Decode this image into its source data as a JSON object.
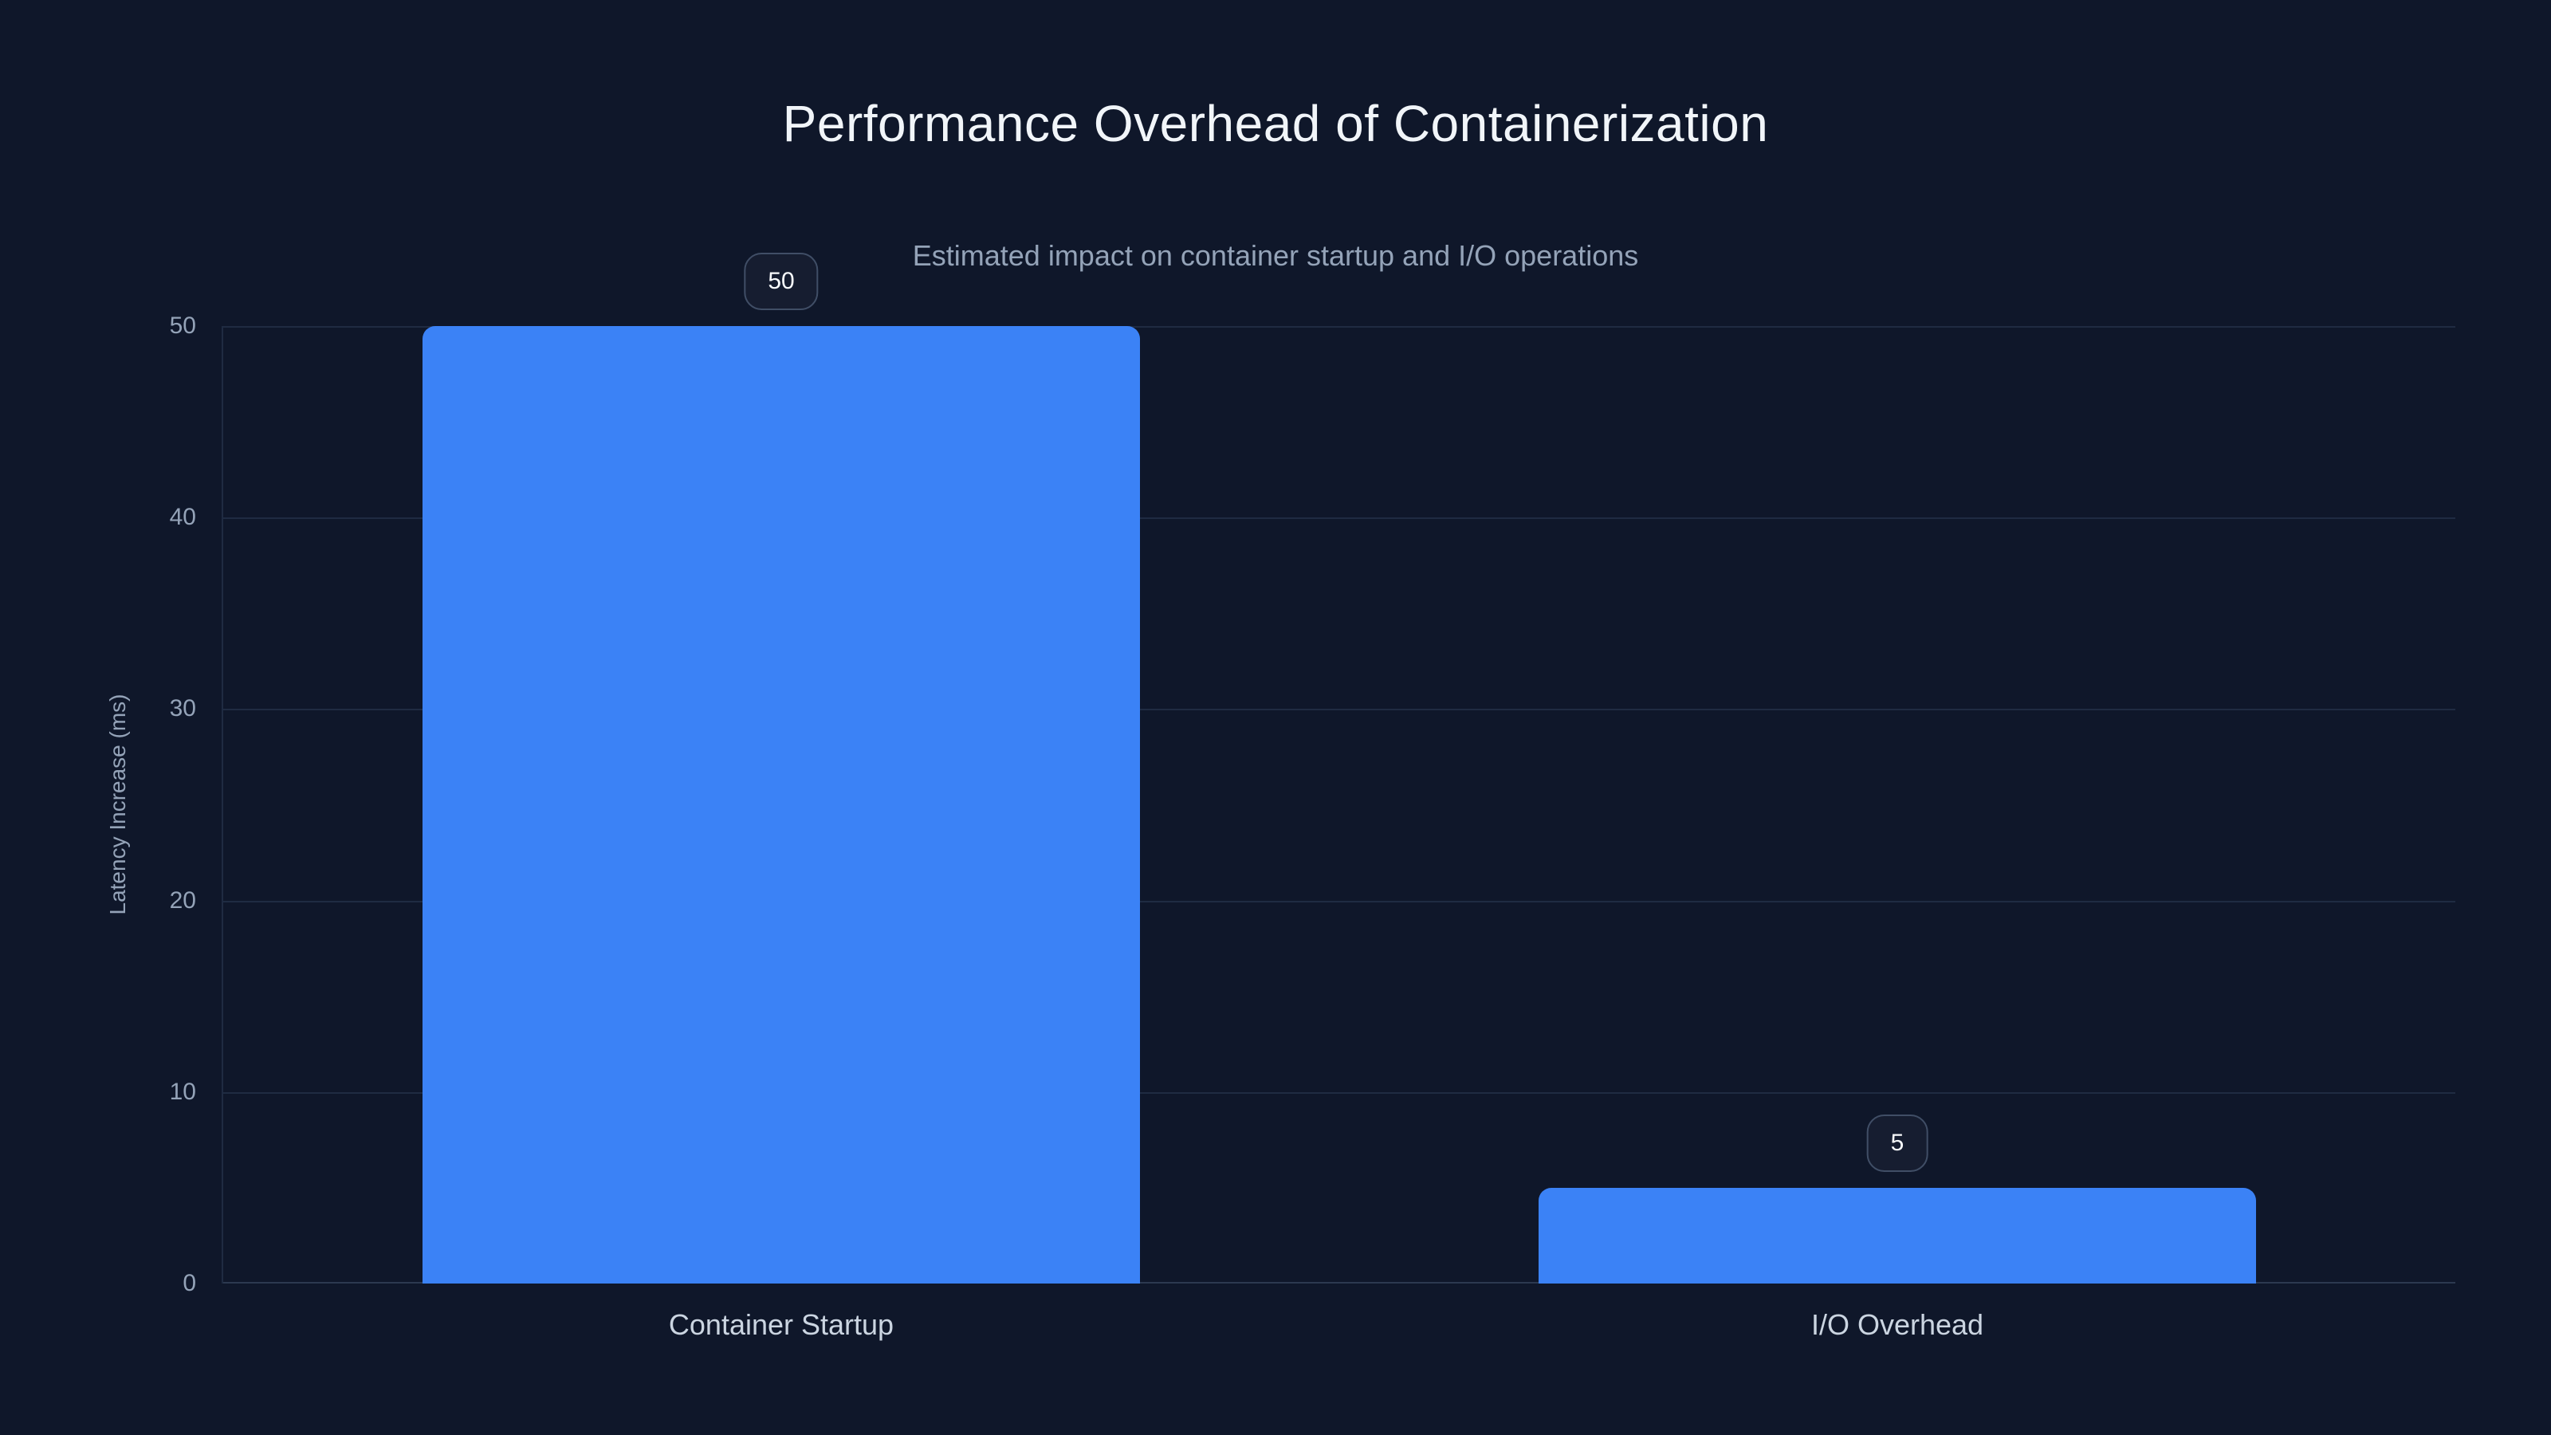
{
  "chart": {
    "title": "Performance Overhead of Containerization",
    "subtitle": "Estimated impact on container startup and I/O operations",
    "ylabel": "Latency Increase (ms)"
  },
  "chart_data": {
    "type": "bar",
    "title": "Performance Overhead of Containerization",
    "subtitle": "Estimated impact on container startup and I/O operations",
    "xlabel": "",
    "ylabel": "Latency Increase (ms)",
    "categories": [
      "Container Startup",
      "I/O Overhead"
    ],
    "values": [
      50,
      5
    ],
    "value_labels": [
      "50",
      "5"
    ],
    "yticks": [
      0,
      10,
      20,
      30,
      40,
      50
    ],
    "ylim": [
      0,
      50
    ],
    "grid": true,
    "legend": false,
    "colors": {
      "background": "#0f172a",
      "bar": "#3b82f6",
      "title_text": "#f1f5f9",
      "subtitle_text": "#94a3b8",
      "axis_text": "#94a3b8",
      "category_text": "#cbd5e1",
      "gridline": "#1f2b42",
      "badge_border": "#404e66",
      "badge_text": "#f8fafc"
    }
  }
}
